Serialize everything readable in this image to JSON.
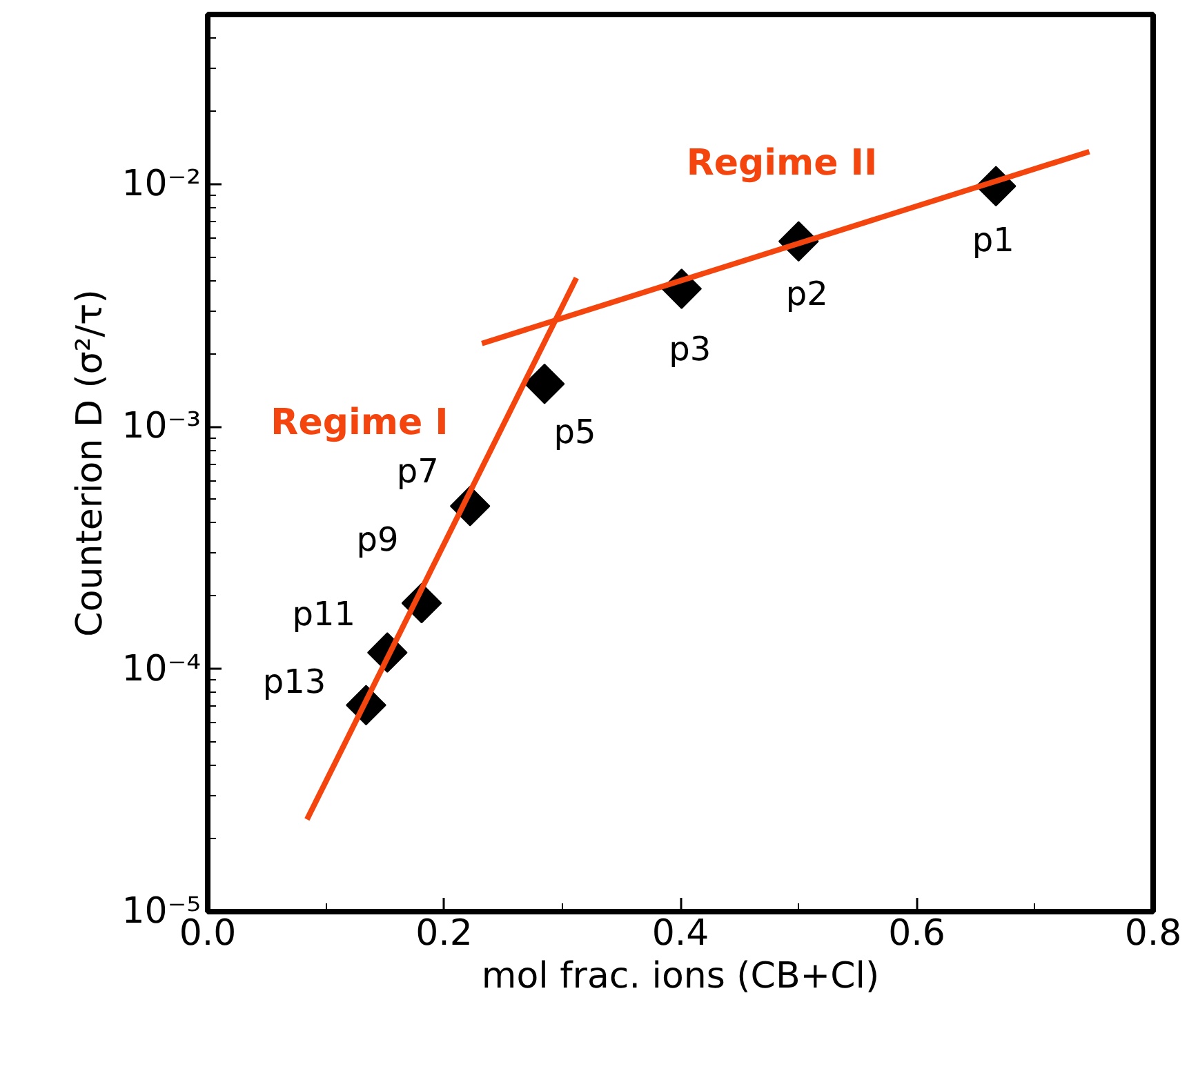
{
  "chart_data": {
    "type": "scatter",
    "xlabel": "mol frac. ions (CB+Cl)",
    "ylabel": "Counterion D (σ²/τ)",
    "log": "y",
    "marker": "diamond",
    "xlim": [
      0,
      0.8
    ],
    "ylim": [
      1e-05,
      0.05
    ],
    "xticks": [
      {
        "value": 0,
        "label": "0.0"
      },
      {
        "value": 0.1,
        "label": null
      },
      {
        "value": 0.2,
        "label": "0.2"
      },
      {
        "value": 0.3,
        "label": null
      },
      {
        "value": 0.4,
        "label": "0.4"
      },
      {
        "value": 0.5,
        "label": null
      },
      {
        "value": 0.6,
        "label": "0.6"
      },
      {
        "value": 0.7,
        "label": null
      },
      {
        "value": 0.8,
        "label": "0.8"
      }
    ],
    "yticks": [
      {
        "value": 1e-05,
        "label": "10⁻⁵"
      },
      {
        "value": 0.0001,
        "label": "10⁻⁴"
      },
      {
        "value": 0.001,
        "label": "10⁻³"
      },
      {
        "value": 0.01,
        "label": "10⁻²"
      },
      {
        "value": 2e-05,
        "label": null
      },
      {
        "value": 3e-05,
        "label": null
      },
      {
        "value": 4e-05,
        "label": null
      },
      {
        "value": 5e-05,
        "label": null
      },
      {
        "value": 6e-05,
        "label": null
      },
      {
        "value": 7e-05,
        "label": null
      },
      {
        "value": 8e-05,
        "label": null
      },
      {
        "value": 9e-05,
        "label": null
      },
      {
        "value": 0.0002,
        "label": null
      },
      {
        "value": 0.0003,
        "label": null
      },
      {
        "value": 0.0004,
        "label": null
      },
      {
        "value": 0.0005,
        "label": null
      },
      {
        "value": 0.0006,
        "label": null
      },
      {
        "value": 0.0007,
        "label": null
      },
      {
        "value": 0.0008,
        "label": null
      },
      {
        "value": 0.0009,
        "label": null
      },
      {
        "value": 0.002,
        "label": null
      },
      {
        "value": 0.003,
        "label": null
      },
      {
        "value": 0.004,
        "label": null
      },
      {
        "value": 0.005,
        "label": null
      },
      {
        "value": 0.006,
        "label": null
      },
      {
        "value": 0.007,
        "label": null
      },
      {
        "value": 0.008,
        "label": null
      },
      {
        "value": 0.009,
        "label": null
      },
      {
        "value": 0.02,
        "label": null
      },
      {
        "value": 0.03,
        "label": null
      },
      {
        "value": 0.04,
        "label": null
      },
      {
        "value": 0.05,
        "label": null
      }
    ],
    "series": [
      {
        "color": "#000000",
        "x": [
          0.134,
          0.152,
          0.181,
          0.222,
          0.285,
          0.401,
          0.5,
          0.667
        ],
        "values": [
          7.1e-05,
          0.000117,
          0.000187,
          0.00047,
          0.0015,
          0.0037,
          0.0058,
          0.0098
        ]
      },
      {
        "type": "line",
        "color": "#f5450f",
        "marker": "none",
        "x": [
          0.084,
          0.312
        ],
        "values": [
          2.4e-05,
          0.0041
        ]
      },
      {
        "type": "line",
        "color": "#f5450f",
        "marker": "none",
        "x": [
          0.232,
          0.746
        ],
        "values": [
          0.0022,
          0.0136
        ]
      }
    ],
    "annotations": [
      {
        "text": "p13",
        "x": 0.134,
        "y": 7.1e-05
      },
      {
        "text": "p11",
        "x": 0.152,
        "y": 0.000117
      },
      {
        "text": "p9",
        "x": 0.181,
        "y": 0.000187
      },
      {
        "text": "p7",
        "x": 0.222,
        "y": 0.00047
      },
      {
        "text": "p5",
        "x": 0.285,
        "y": 0.0015
      },
      {
        "text": "p3",
        "x": 0.401,
        "y": 0.0037
      },
      {
        "text": "p2",
        "x": 0.5,
        "y": 0.0058
      },
      {
        "text": "p1",
        "x": 0.667,
        "y": 0.0098
      },
      "Regime I",
      "Regime II"
    ]
  }
}
